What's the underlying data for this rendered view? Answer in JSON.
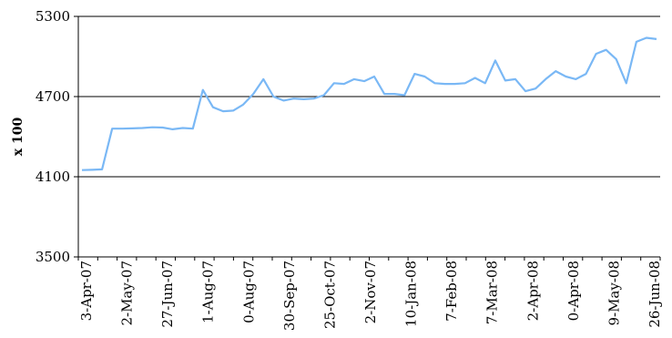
{
  "chart_data": {
    "type": "line",
    "ylabel": "x 100",
    "xlabel": "",
    "title": "",
    "ylim": [
      3500,
      5300
    ],
    "yticks": [
      3500,
      4100,
      4700,
      5300
    ],
    "grid": "horizontal",
    "colors": {
      "line": "#7ab8f5",
      "grid": "#000000",
      "axis": "#000000"
    },
    "x_tick_labels": [
      "3-Apr-07",
      "2-May-07",
      "27-Jun-07",
      "1-Aug-07",
      "0-Aug-07",
      "30-Sep-07",
      "25-Oct-07",
      "2-Nov-07",
      "10-Jan-08",
      "7-Feb-08",
      "7-Mar-08",
      "2-Apr-08",
      "0-Apr-08",
      "9-May-08",
      "26-Jun-08"
    ],
    "series": [
      {
        "values": [
          4150,
          4152,
          4155,
          4460,
          4460,
          4462,
          4465,
          4470,
          4468,
          4455,
          4465,
          4460,
          4750,
          4620,
          4590,
          4595,
          4640,
          4720,
          4830,
          4700,
          4670,
          4685,
          4680,
          4685,
          4710,
          4800,
          4795,
          4830,
          4815,
          4850,
          4720,
          4720,
          4710,
          4870,
          4850,
          4800,
          4795,
          4795,
          4800,
          4840,
          4800,
          4970,
          4820,
          4830,
          4740,
          4760,
          4830,
          4890,
          4850,
          4830,
          4870,
          5020,
          5050,
          4980,
          4800,
          5110,
          5140,
          5130
        ]
      }
    ]
  }
}
